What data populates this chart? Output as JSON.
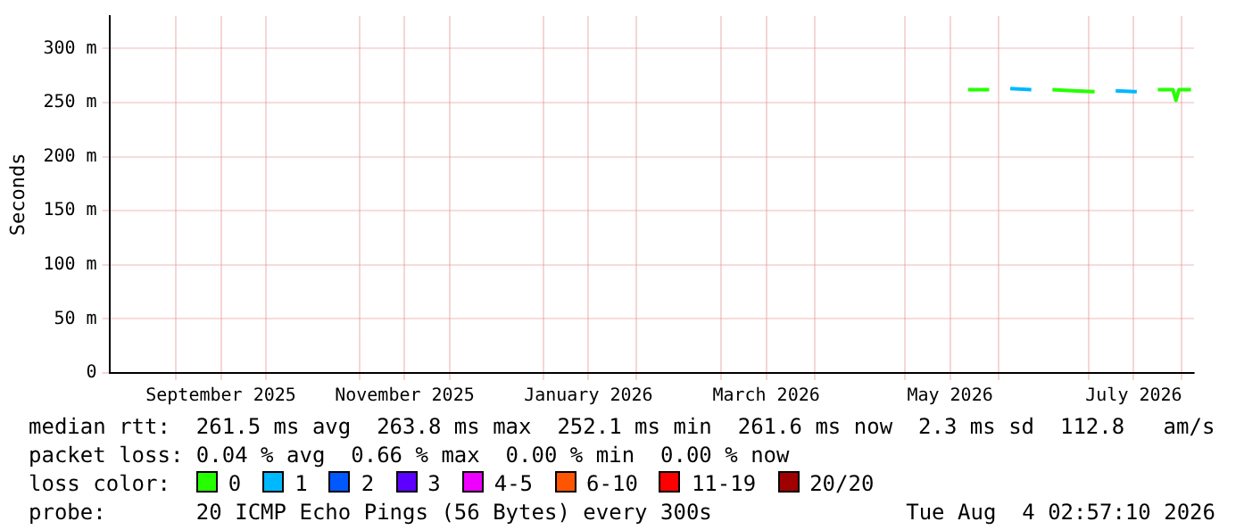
{
  "chart_data": {
    "type": "line",
    "ylabel": "Seconds",
    "legend_title": "loss color:",
    "legend": "bottom",
    "grid": true,
    "marker": "none",
    "line_style": "solid",
    "x": [
      "2026-05-22",
      "2026-05-29",
      "2026-06-05",
      "2026-06-12",
      "2026-06-19",
      "2026-06-26",
      "2026-07-03",
      "2026-07-10",
      "2026-07-17",
      "2026-07-24",
      "2026-07-29",
      "2026-07-30",
      "2026-07-31",
      "2026-08-04"
    ],
    "xlim": [
      "2025-08-10",
      "2026-08-05"
    ],
    "xticks": [
      {
        "value": "2025-09-01",
        "label": null
      },
      {
        "value": "2025-09-16",
        "label": "September 2025"
      },
      {
        "value": "2025-10-01",
        "label": null
      },
      {
        "value": "2025-11-01",
        "label": null
      },
      {
        "value": "2025-11-16",
        "label": "November 2025"
      },
      {
        "value": "2025-12-01",
        "label": null
      },
      {
        "value": "2026-01-01",
        "label": null
      },
      {
        "value": "2026-01-16",
        "label": "January 2026"
      },
      {
        "value": "2026-02-01",
        "label": null
      },
      {
        "value": "2026-03-01",
        "label": null
      },
      {
        "value": "2026-03-16",
        "label": "March 2026"
      },
      {
        "value": "2026-04-01",
        "label": null
      },
      {
        "value": "2026-05-01",
        "label": null
      },
      {
        "value": "2026-05-16",
        "label": "May 2026"
      },
      {
        "value": "2026-06-01",
        "label": null
      },
      {
        "value": "2026-07-01",
        "label": null
      },
      {
        "value": "2026-07-16",
        "label": "July 2026"
      },
      {
        "value": "2026-08-01",
        "label": null
      }
    ],
    "ylim": [
      0,
      330
    ],
    "yticks": [
      0,
      {
        "value": 50,
        "label": "50 m"
      },
      {
        "value": 100,
        "label": "100 m"
      },
      {
        "value": 150,
        "label": "150 m"
      },
      {
        "value": 200,
        "label": "200 m"
      },
      {
        "value": 250,
        "label": "250 m"
      },
      {
        "value": 300,
        "label": "300 m"
      }
    ],
    "series": [
      {
        "name": "0",
        "color": "#26ff00",
        "values": [
          262,
          262,
          null,
          null,
          262,
          261,
          260,
          null,
          null,
          262,
          262,
          252,
          262,
          262
        ]
      },
      {
        "name": "1",
        "color": "#00b8ff",
        "values": [
          null,
          null,
          263,
          262,
          null,
          null,
          null,
          261,
          260,
          null,
          null,
          null,
          null,
          null
        ]
      },
      {
        "name": "2",
        "color": "#0059ff",
        "values": [
          null,
          null,
          null,
          null,
          null,
          null,
          null,
          null,
          null,
          null,
          null,
          null,
          null,
          null
        ]
      },
      {
        "name": "3",
        "color": "#5e00ff",
        "values": [
          null,
          null,
          null,
          null,
          null,
          null,
          null,
          null,
          null,
          null,
          null,
          null,
          null,
          null
        ]
      },
      {
        "name": "4-5",
        "color": "#ee00ff",
        "values": [
          null,
          null,
          null,
          null,
          null,
          null,
          null,
          null,
          null,
          null,
          null,
          null,
          null,
          null
        ]
      },
      {
        "name": "6-10",
        "color": "#ff5500",
        "values": [
          null,
          null,
          null,
          null,
          null,
          null,
          null,
          null,
          null,
          null,
          null,
          null,
          null,
          null
        ]
      },
      {
        "name": "11-19",
        "color": "#ff0000",
        "values": [
          null,
          null,
          null,
          null,
          null,
          null,
          null,
          null,
          null,
          null,
          null,
          null,
          null,
          null
        ]
      },
      {
        "name": "20/20",
        "color": "#a10000",
        "values": [
          null,
          null,
          null,
          null,
          null,
          null,
          null,
          null,
          null,
          null,
          null,
          null,
          null,
          null
        ]
      }
    ],
    "annotations": [
      "median rtt:  261.5 ms avg  263.8 ms max  252.1 ms min  261.6 ms now  2.3 ms sd  112.8   am/s",
      "packet loss: 0.04 % avg  0.66 % max  0.00 % min  0.00 % now",
      "probe:       20 ICMP Echo Pings (56 Bytes) every 300s",
      "Tue Aug  4 02:57:10 2026"
    ]
  }
}
